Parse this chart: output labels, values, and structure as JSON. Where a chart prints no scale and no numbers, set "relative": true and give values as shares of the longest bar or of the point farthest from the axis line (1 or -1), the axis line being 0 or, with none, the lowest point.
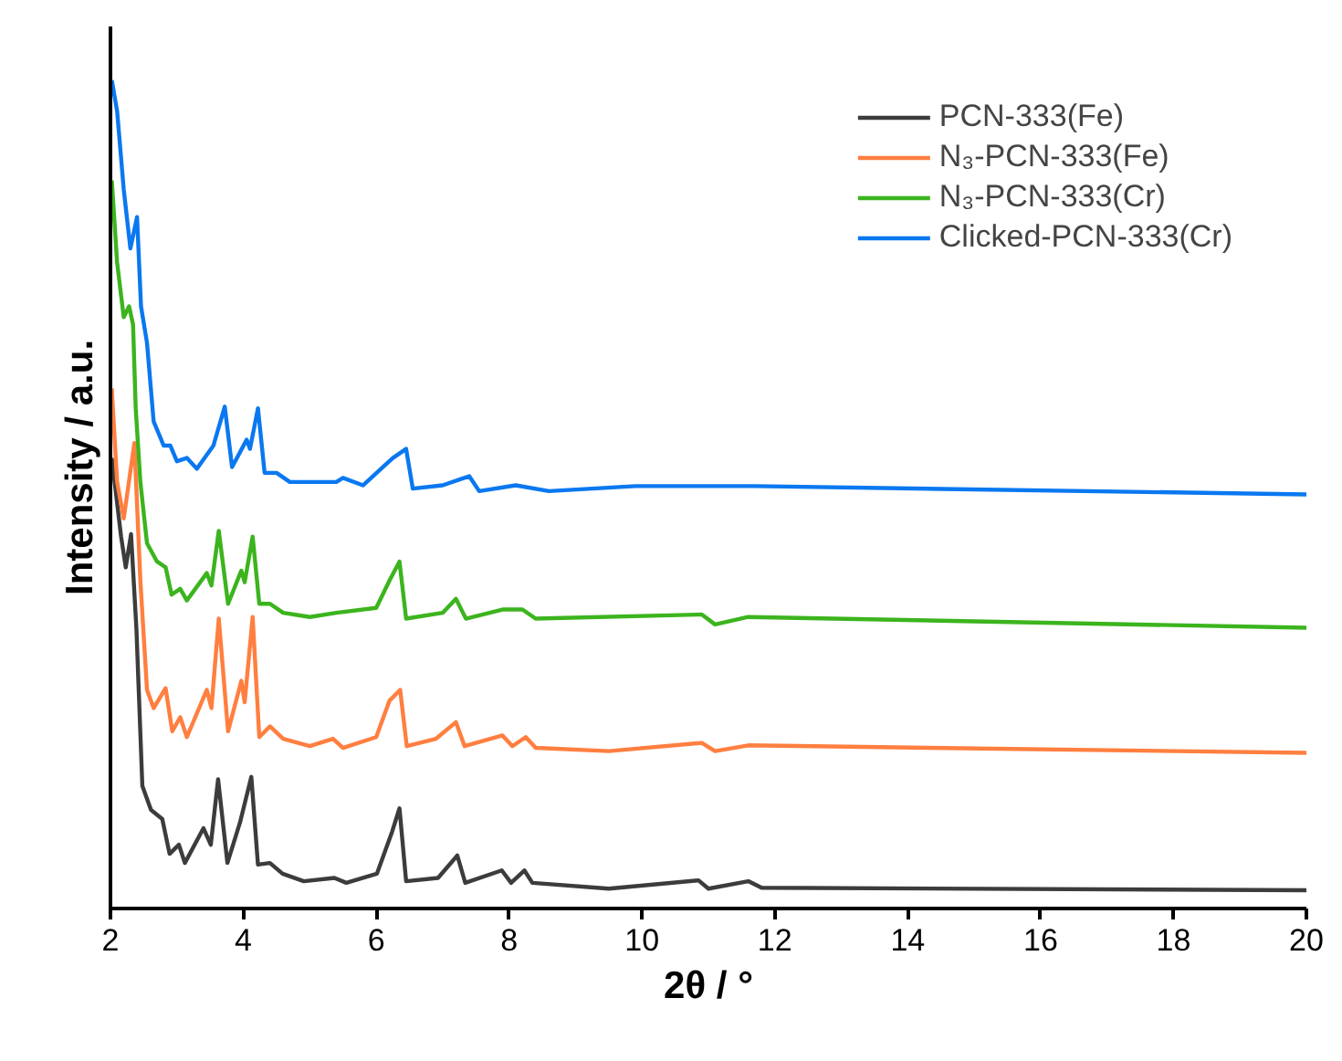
{
  "chart_data": {
    "type": "line",
    "relative": true,
    "xlabel": "2θ / °",
    "ylabel": "Intensity / a.u.",
    "xlim": [
      2,
      20
    ],
    "xticks": [
      2,
      4,
      6,
      8,
      10,
      12,
      14,
      16,
      18,
      20
    ],
    "grid": false,
    "legend": "top right",
    "line_style": "solid",
    "marker": "none",
    "series": [
      {
        "name": "PCN-333(Fe)",
        "color": "#3c3c3c",
        "x": [
          2.02,
          2.16,
          2.23,
          2.31,
          2.39,
          2.48,
          2.61,
          2.78,
          2.89,
          3.03,
          3.12,
          3.4,
          3.51,
          3.62,
          3.76,
          3.95,
          4.12,
          4.22,
          4.4,
          4.59,
          4.91,
          5.37,
          5.55,
          6.01,
          6.24,
          6.35,
          6.45,
          6.93,
          7.22,
          7.34,
          7.89,
          8.03,
          8.23,
          8.35,
          9.5,
          10.85,
          11.0,
          11.6,
          11.8,
          20
        ],
        "values": [
          0.544,
          0.449,
          0.412,
          0.452,
          0.339,
          0.148,
          0.119,
          0.108,
          0.066,
          0.077,
          0.055,
          0.097,
          0.077,
          0.156,
          0.055,
          0.104,
          0.159,
          0.053,
          0.055,
          0.042,
          0.033,
          0.037,
          0.031,
          0.042,
          0.093,
          0.121,
          0.033,
          0.037,
          0.064,
          0.031,
          0.046,
          0.031,
          0.046,
          0.031,
          0.024,
          0.034,
          0.024,
          0.033,
          0.025,
          0.022
        ]
      },
      {
        "name": "N₃-PCN-333(Fe)",
        "color": "#ff7f40",
        "x": [
          2.02,
          2.1,
          2.2,
          2.36,
          2.45,
          2.55,
          2.65,
          2.83,
          2.93,
          3.05,
          3.15,
          3.45,
          3.52,
          3.63,
          3.77,
          3.97,
          4.02,
          4.14,
          4.24,
          4.4,
          4.6,
          5.0,
          5.35,
          5.5,
          6.0,
          6.2,
          6.36,
          6.46,
          6.9,
          7.2,
          7.33,
          7.9,
          8.05,
          8.25,
          8.4,
          9.5,
          10.9,
          11.1,
          11.6,
          20
        ],
        "values": [
          0.628,
          0.515,
          0.471,
          0.562,
          0.396,
          0.264,
          0.242,
          0.266,
          0.214,
          0.231,
          0.207,
          0.264,
          0.242,
          0.35,
          0.214,
          0.275,
          0.249,
          0.352,
          0.207,
          0.22,
          0.205,
          0.196,
          0.205,
          0.194,
          0.207,
          0.251,
          0.264,
          0.196,
          0.205,
          0.225,
          0.196,
          0.209,
          0.196,
          0.207,
          0.194,
          0.19,
          0.2,
          0.19,
          0.197,
          0.188
        ]
      },
      {
        "name": "N₃-PCN-333(Cr)",
        "color": "#3cb41e",
        "x": [
          2.02,
          2.1,
          2.2,
          2.28,
          2.34,
          2.38,
          2.45,
          2.55,
          2.7,
          2.83,
          2.92,
          3.05,
          3.15,
          3.45,
          3.52,
          3.63,
          3.77,
          3.97,
          4.02,
          4.14,
          4.24,
          4.4,
          4.6,
          5.0,
          5.4,
          6.0,
          6.2,
          6.35,
          6.45,
          7.0,
          7.2,
          7.35,
          7.9,
          8.2,
          8.4,
          10.9,
          11.1,
          11.6,
          20
        ],
        "values": [
          0.879,
          0.78,
          0.714,
          0.727,
          0.705,
          0.604,
          0.515,
          0.441,
          0.419,
          0.412,
          0.379,
          0.386,
          0.372,
          0.405,
          0.39,
          0.456,
          0.368,
          0.408,
          0.394,
          0.449,
          0.368,
          0.368,
          0.357,
          0.352,
          0.357,
          0.363,
          0.396,
          0.419,
          0.35,
          0.357,
          0.374,
          0.35,
          0.361,
          0.361,
          0.35,
          0.355,
          0.343,
          0.352,
          0.339
        ]
      },
      {
        "name": "Clicked-PCN-333(Cr)",
        "color": "#0a78f0",
        "x": [
          2.02,
          2.1,
          2.2,
          2.3,
          2.4,
          2.46,
          2.55,
          2.65,
          2.8,
          2.9,
          3.0,
          3.15,
          3.3,
          3.55,
          3.72,
          3.83,
          4.05,
          4.1,
          4.22,
          4.32,
          4.5,
          4.7,
          5.4,
          5.5,
          5.8,
          6.25,
          6.45,
          6.55,
          7.0,
          7.4,
          7.55,
          8.1,
          8.6,
          9.9,
          11.7,
          20
        ],
        "values": [
          1.0,
          0.963,
          0.868,
          0.797,
          0.835,
          0.727,
          0.683,
          0.588,
          0.559,
          0.559,
          0.54,
          0.544,
          0.531,
          0.559,
          0.606,
          0.533,
          0.566,
          0.555,
          0.604,
          0.526,
          0.526,
          0.515,
          0.515,
          0.52,
          0.511,
          0.544,
          0.555,
          0.507,
          0.511,
          0.522,
          0.504,
          0.511,
          0.504,
          0.51,
          0.51,
          0.5
        ]
      }
    ]
  }
}
